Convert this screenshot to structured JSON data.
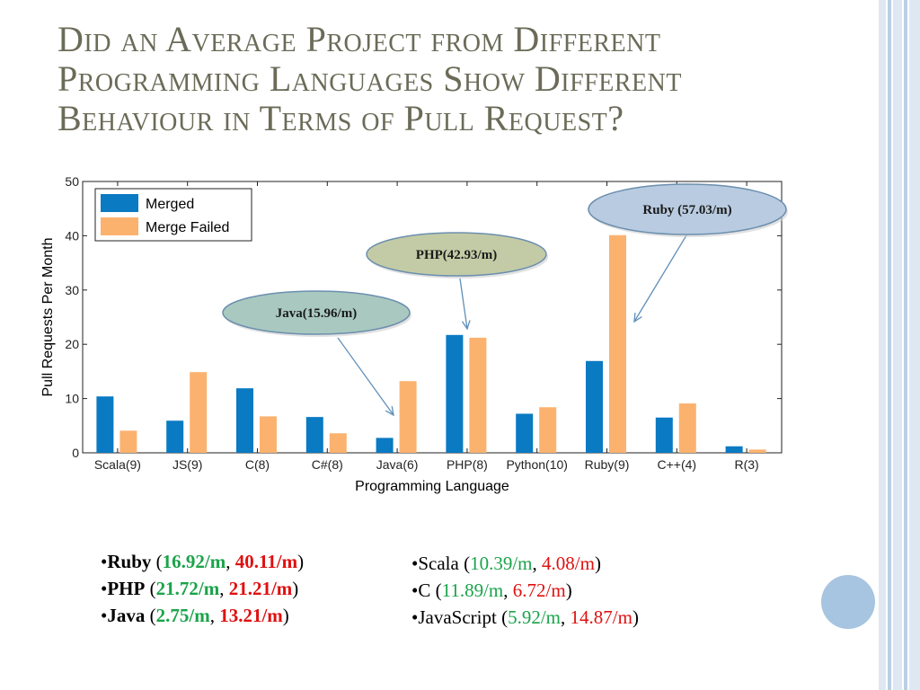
{
  "slide": {
    "title_lines": [
      "Did an Average Project from Different",
      "Programming Languages Show Different",
      "Behaviour in Terms of Pull Request?"
    ]
  },
  "chart_data": {
    "type": "bar",
    "xlabel": "Programming Language",
    "ylabel": "Pull Requests Per Month",
    "ylim": [
      0,
      50
    ],
    "yticks": [
      0,
      10,
      20,
      30,
      40,
      50
    ],
    "categories": [
      "Scala(9)",
      "JS(9)",
      "C(8)",
      "C#(8)",
      "Java(6)",
      "PHP(8)",
      "Python(10)",
      "Ruby(9)",
      "C++(4)",
      "R(3)"
    ],
    "series": [
      {
        "name": "Merged",
        "color": "#0a7ac3",
        "values": [
          10.39,
          5.92,
          11.89,
          6.6,
          2.75,
          21.72,
          7.2,
          16.92,
          6.5,
          1.2
        ]
      },
      {
        "name": "Merge Failed",
        "color": "#fbb26f",
        "values": [
          4.08,
          14.87,
          6.72,
          3.6,
          13.21,
          21.21,
          8.4,
          40.11,
          9.1,
          0.6
        ]
      }
    ],
    "legend_position": "top-left",
    "annotations": [
      {
        "text": "Java(15.96/m)",
        "category": "Java(6)",
        "fill": "#a9c9c0"
      },
      {
        "text": "PHP(42.93/m)",
        "category": "PHP(8)",
        "fill": "#c3cba6"
      },
      {
        "text": "Ruby (57.03/m)",
        "category": "Ruby(9)",
        "fill": "#b9cbe0"
      }
    ]
  },
  "bullets_left": [
    {
      "lang": "Ruby",
      "merged": "16.92/m",
      "failed": "40.11/m"
    },
    {
      "lang": "PHP",
      "merged": "21.72/m",
      "failed": "21.21/m"
    },
    {
      "lang": "Java",
      "merged": "2.75/m",
      "failed": "13.21/m"
    }
  ],
  "bullets_right": [
    {
      "lang": "Scala",
      "merged": "10.39/m",
      "failed": "4.08/m"
    },
    {
      "lang": "C",
      "merged": "11.89/m",
      "failed": "6.72/m"
    },
    {
      "lang": "JavaScript",
      "merged": "5.92/m",
      "failed": "14.87/m"
    }
  ]
}
